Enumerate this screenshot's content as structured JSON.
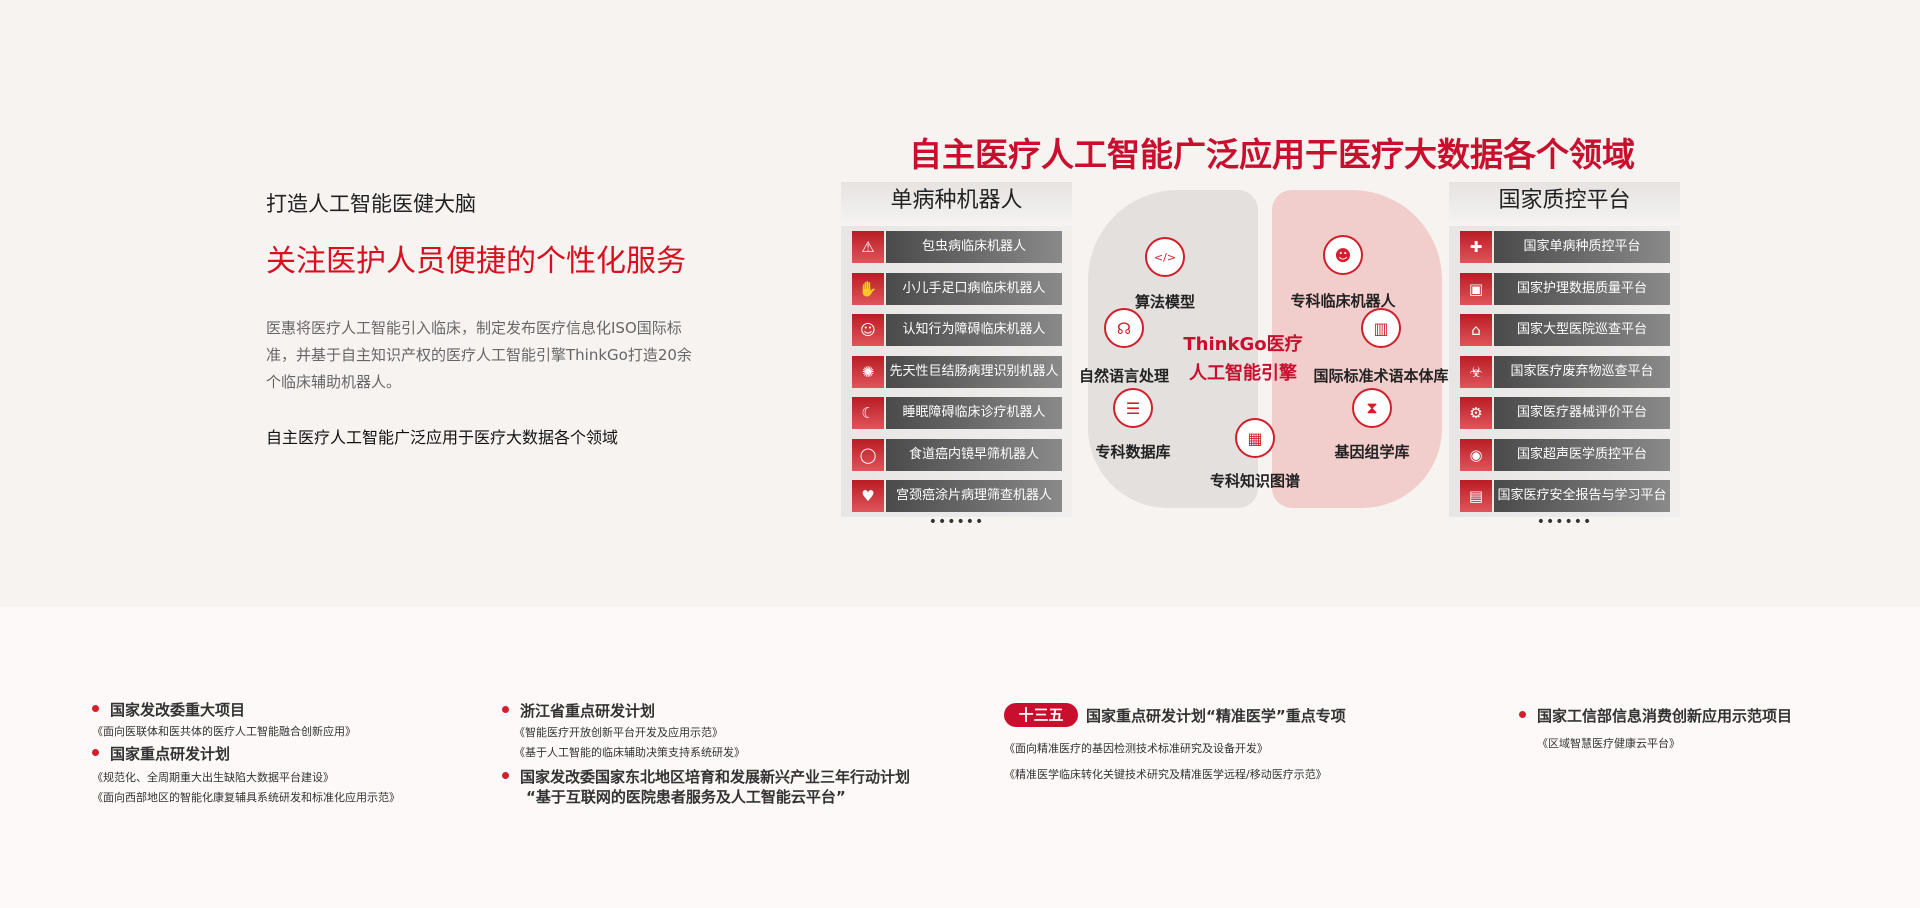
{
  "intro": {
    "heading": "打造人工智能医健大脑",
    "subtitle": "关注医护人员便捷的个性化服务",
    "paragraph": "医惠将医疗人工智能引入临床，制定发布医疗信息化ISO国际标准，并基于自主知识产权的医疗人工智能引擎ThinkGo打造20余个临床辅助机器人。",
    "bold_line": "自主医疗人工智能广泛应用于医疗大数据各个领域"
  },
  "main_title": "自主医疗人工智能广泛应用于医疗大数据各个领域",
  "left_panel": {
    "title": "单病种机器人",
    "more": "••••••",
    "items": [
      {
        "label": "包虫病临床机器人",
        "icon": "parasite-icon"
      },
      {
        "label": "小儿手足口病临床机器人",
        "icon": "hand-virus-icon"
      },
      {
        "label": "认知行为障碍临床机器人",
        "icon": "head-brain-icon"
      },
      {
        "label": "先天性巨结肠病理识别机器人",
        "icon": "intestine-icon"
      },
      {
        "label": "睡眠障碍临床诊疗机器人",
        "icon": "sleep-bed-icon"
      },
      {
        "label": "食道癌内镜早筛机器人",
        "icon": "esophagus-icon"
      },
      {
        "label": "宫颈癌涂片病理筛查机器人",
        "icon": "uterus-icon"
      }
    ]
  },
  "right_panel": {
    "title": "国家质控平台",
    "more": "••••••",
    "items": [
      {
        "label": "国家单病种质控平台",
        "icon": "medical-cross-icon"
      },
      {
        "label": "国家护理数据质量平台",
        "icon": "laptop-medical-icon"
      },
      {
        "label": "国家大型医院巡查平台",
        "icon": "hospital-icon"
      },
      {
        "label": "国家医疗废弃物巡查平台",
        "icon": "biohazard-icon"
      },
      {
        "label": "国家医疗器械评价平台",
        "icon": "robot-arm-icon"
      },
      {
        "label": "国家超声医学质控平台",
        "icon": "ultrasound-icon"
      },
      {
        "label": "国家医疗安全报告与学习平台",
        "icon": "report-book-icon"
      }
    ]
  },
  "brain": {
    "center_line1": "ThinkGo医疗",
    "center_line2": "人工智能引擎",
    "nodes": [
      {
        "label": "算法模型",
        "icon": "code-monitor-icon"
      },
      {
        "label": "专科临床机器人",
        "icon": "robot-icon"
      },
      {
        "label": "自然语言处理",
        "icon": "speaking-head-icon"
      },
      {
        "label": "国际标准术语本体库",
        "icon": "binders-icon"
      },
      {
        "label": "专科数据库",
        "icon": "database-icon"
      },
      {
        "label": "基因组学库",
        "icon": "dna-icon"
      },
      {
        "label": "专科知识图谱",
        "icon": "book-icon"
      }
    ]
  },
  "projects": {
    "col1": [
      {
        "title": "国家发改委重大项目",
        "subs": [
          "《面向医联体和医共体的医疗人工智能融合创新应用》"
        ]
      },
      {
        "title": "国家重点研发计划",
        "subs": [
          "《规范化、全周期重大出生缺陷大数据平台建设》",
          "《面向西部地区的智能化康复辅具系统研发和标准化应用示范》"
        ]
      }
    ],
    "col2": [
      {
        "title": "浙江省重点研发计划",
        "subs": [
          "《智能医疗开放创新平台开发及应用示范》",
          "《基于人工智能的临床辅助决策支持系统研发》"
        ]
      },
      {
        "title": "国家发改委国家东北地区培育和发展新兴产业三年行动计划",
        "title2": "“基于互联网的医院患者服务及人工智能云平台”"
      }
    ],
    "col3": {
      "badge": "十三五",
      "title": "国家重点研发计划“精准医学”重点专项",
      "subs": [
        "《面向精准医疗的基因检测技术标准研究及设备开发》",
        "《精准医学临床转化关键技术研究及精准医学远程/移动医疗示范》"
      ]
    },
    "col4": {
      "title": "国家工信部信息消费创新应用示范项目",
      "subs": [
        "《区域智慧医疗健康云平台》"
      ]
    }
  },
  "colors": {
    "accent": "#c8102e",
    "top_bg": "#f7f3f1"
  }
}
